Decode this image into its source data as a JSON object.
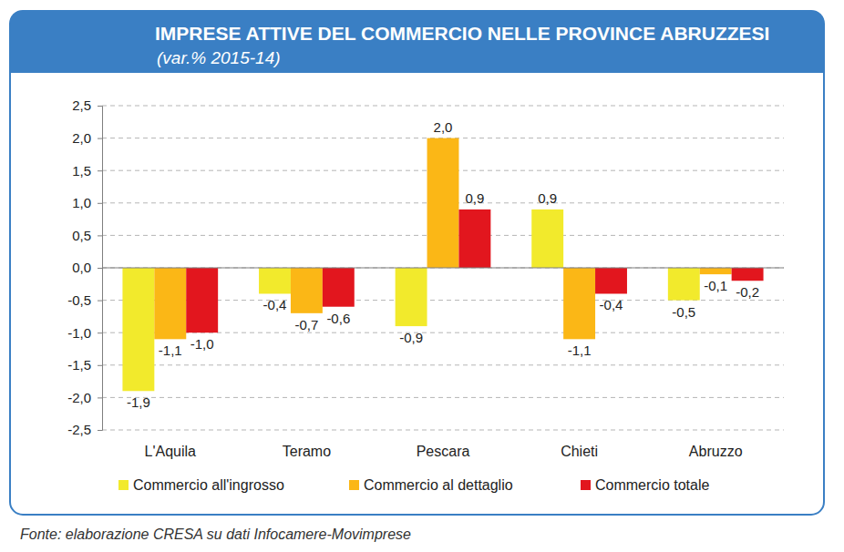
{
  "chart_data": {
    "type": "bar",
    "title": "IMPRESE ATTIVE DEL COMMERCIO NELLE PROVINCE ABRUZZESI",
    "subtitle": "(var.% 2015-14)",
    "source": "Fonte: elaborazione CRESA su dati Infocamere-Movimprese",
    "categories": [
      "L'Aquila",
      "Teramo",
      "Pescara",
      "Chieti",
      "Abruzzo"
    ],
    "series": [
      {
        "name": "Commercio all'ingrosso",
        "color": "#f2ea2c",
        "values": [
          -1.9,
          -0.4,
          -0.9,
          0.9,
          -0.5
        ],
        "value_labels": [
          "-1,9",
          "-0,4",
          "-0,9",
          "0,9",
          "-0,5"
        ]
      },
      {
        "name": "Commercio al dettaglio",
        "color": "#fbb716",
        "values": [
          -1.1,
          -0.7,
          2.0,
          -1.1,
          -0.1
        ],
        "value_labels": [
          "-1,1",
          "-0,7",
          "2,0",
          "-1,1",
          "-0,1"
        ]
      },
      {
        "name": "Commercio totale",
        "color": "#e2161e",
        "values": [
          -1.0,
          -0.6,
          0.9,
          -0.4,
          -0.2
        ],
        "value_labels": [
          "-1,0",
          "-0,6",
          "0,9",
          "-0,4",
          "-0,2"
        ]
      }
    ],
    "ylim": [
      -2.5,
      2.5
    ],
    "yticks": [
      {
        "value": -2.5,
        "label": "-2,5"
      },
      {
        "value": -2.0,
        "label": "-2,0"
      },
      {
        "value": -1.5,
        "label": "-1,5"
      },
      {
        "value": -1.0,
        "label": "-1,0"
      },
      {
        "value": -0.5,
        "label": "-0,5"
      },
      {
        "value": 0.0,
        "label": "0,0"
      },
      {
        "value": 0.5,
        "label": "0,5"
      },
      {
        "value": 1.0,
        "label": "1,0"
      },
      {
        "value": 1.5,
        "label": "1,5"
      },
      {
        "value": 2.0,
        "label": "2,0"
      },
      {
        "value": 2.5,
        "label": "2,5"
      }
    ],
    "grid": true,
    "data_labels": true,
    "legend": "bottom"
  }
}
